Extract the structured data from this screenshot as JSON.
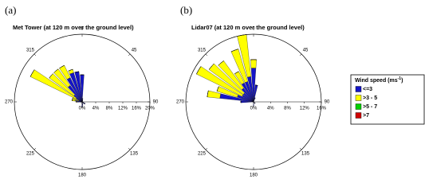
{
  "chart_data": [
    {
      "type": "windrose",
      "label": "(a)",
      "title": "Met Tower (at 120 m over the ground level)",
      "x": [
        0,
        10,
        20,
        30,
        40,
        50,
        60,
        70,
        80,
        90,
        100,
        110,
        120,
        130,
        140,
        150,
        160,
        170,
        180,
        190,
        200,
        210,
        220,
        230,
        240,
        250,
        260,
        270,
        280,
        290,
        300,
        310,
        320,
        330,
        340,
        350
      ],
      "rlim": [
        0,
        20
      ],
      "rticks": [
        {
          "value": 0,
          "label": "0%"
        },
        {
          "value": 4,
          "label": "4%"
        },
        {
          "value": 8,
          "label": "8%"
        },
        {
          "value": 12,
          "label": "12%"
        },
        {
          "value": 16,
          "label": "16%"
        },
        {
          "value": 20,
          "label": "20%"
        }
      ],
      "thetaticks": [
        0,
        45,
        90,
        135,
        180,
        225,
        270,
        315
      ],
      "series": [
        {
          "values": [
            8,
            1,
            0.5,
            0.3,
            0,
            0,
            0,
            0,
            0,
            0,
            0,
            0,
            1,
            1,
            0.5,
            0,
            0,
            1,
            1.5,
            0.5,
            0,
            0,
            0,
            0,
            0,
            0,
            0.5,
            1.5,
            2,
            1,
            2,
            3,
            6,
            8,
            9,
            9
          ]
        },
        {
          "values": [
            0,
            0,
            0,
            0,
            0,
            0,
            0,
            0,
            0,
            0,
            0,
            0,
            0,
            0,
            0,
            0,
            0,
            0,
            0,
            0,
            0,
            0,
            0,
            0,
            0,
            0,
            0,
            0.3,
            1,
            2,
            15,
            9,
            6,
            4,
            1,
            0
          ]
        },
        {
          "values": [
            0,
            0,
            0,
            0,
            0,
            0,
            0,
            0,
            0,
            0,
            0,
            0,
            0,
            0,
            0,
            0,
            0,
            0,
            0,
            0,
            0,
            0,
            0,
            0,
            0,
            0,
            0,
            0,
            0,
            0,
            0,
            0,
            0,
            0,
            0,
            0
          ]
        },
        {
          "values": [
            0,
            0,
            0,
            0,
            0,
            0,
            0,
            0,
            0,
            0,
            0,
            0,
            0,
            0,
            0,
            0,
            0,
            0,
            0,
            0,
            0,
            0,
            0,
            0,
            0,
            0,
            0,
            0,
            0,
            0,
            0,
            0,
            0,
            0,
            0,
            0
          ]
        }
      ]
    },
    {
      "type": "windrose",
      "label": "(b)",
      "title": "Lidar07 (at 120 m over the ground level)",
      "x": [
        0,
        10,
        20,
        30,
        40,
        50,
        60,
        70,
        80,
        90,
        100,
        110,
        120,
        130,
        140,
        150,
        160,
        170,
        180,
        190,
        200,
        210,
        220,
        230,
        240,
        250,
        260,
        270,
        280,
        290,
        300,
        310,
        320,
        330,
        340,
        350
      ],
      "rlim": [
        0,
        16
      ],
      "rticks": [
        {
          "value": 0,
          "label": "0%"
        },
        {
          "value": 4,
          "label": "4%"
        },
        {
          "value": 8,
          "label": "8%"
        },
        {
          "value": 12,
          "label": "12%"
        },
        {
          "value": 16,
          "label": "16%"
        }
      ],
      "thetaticks": [
        0,
        45,
        90,
        135,
        180,
        225,
        270,
        315
      ],
      "series": [
        {
          "values": [
            8,
            4,
            1,
            0,
            0,
            0,
            0,
            0,
            0,
            0,
            0,
            0,
            0,
            0.5,
            0.5,
            0,
            0,
            0,
            1,
            0,
            0,
            0,
            0,
            0,
            0,
            0,
            0,
            3,
            8,
            4,
            3,
            3,
            4,
            5,
            5,
            6
          ]
        },
        {
          "values": [
            2,
            0,
            0,
            0,
            0,
            0,
            0,
            0,
            0,
            0,
            0,
            0,
            0,
            0,
            0,
            0,
            0,
            0,
            0,
            0,
            0,
            0,
            0,
            0,
            0,
            0,
            0,
            0,
            3,
            5,
            12,
            10,
            8,
            3,
            8,
            10
          ]
        },
        {
          "values": [
            0,
            0,
            0,
            0,
            0,
            0,
            0,
            0,
            0,
            0,
            0,
            0,
            0,
            0,
            0,
            0,
            0,
            0,
            0,
            0,
            0,
            0,
            0,
            0,
            0,
            0,
            0,
            0,
            0,
            0,
            0,
            0,
            0,
            0,
            0,
            0
          ]
        },
        {
          "values": [
            0,
            0,
            0,
            0,
            0,
            0,
            0,
            0,
            0,
            0,
            0,
            0,
            0,
            0,
            0,
            0,
            0,
            0,
            0,
            0,
            0,
            0,
            0,
            0,
            0,
            0,
            0,
            0,
            0,
            0,
            0,
            0,
            0,
            0,
            0,
            0
          ]
        }
      ]
    }
  ],
  "legend": {
    "title": "Wind speed (ms",
    "title_sup": "-1",
    "title_end": ")",
    "entries": [
      {
        "name": "<=3",
        "color": "#1414c8"
      },
      {
        "name": ">3 - 5",
        "color": "#ffff00"
      },
      {
        "name": ">5 - 7",
        "color": "#00d000"
      },
      {
        "name": ">7",
        "color": "#d00000"
      }
    ]
  }
}
